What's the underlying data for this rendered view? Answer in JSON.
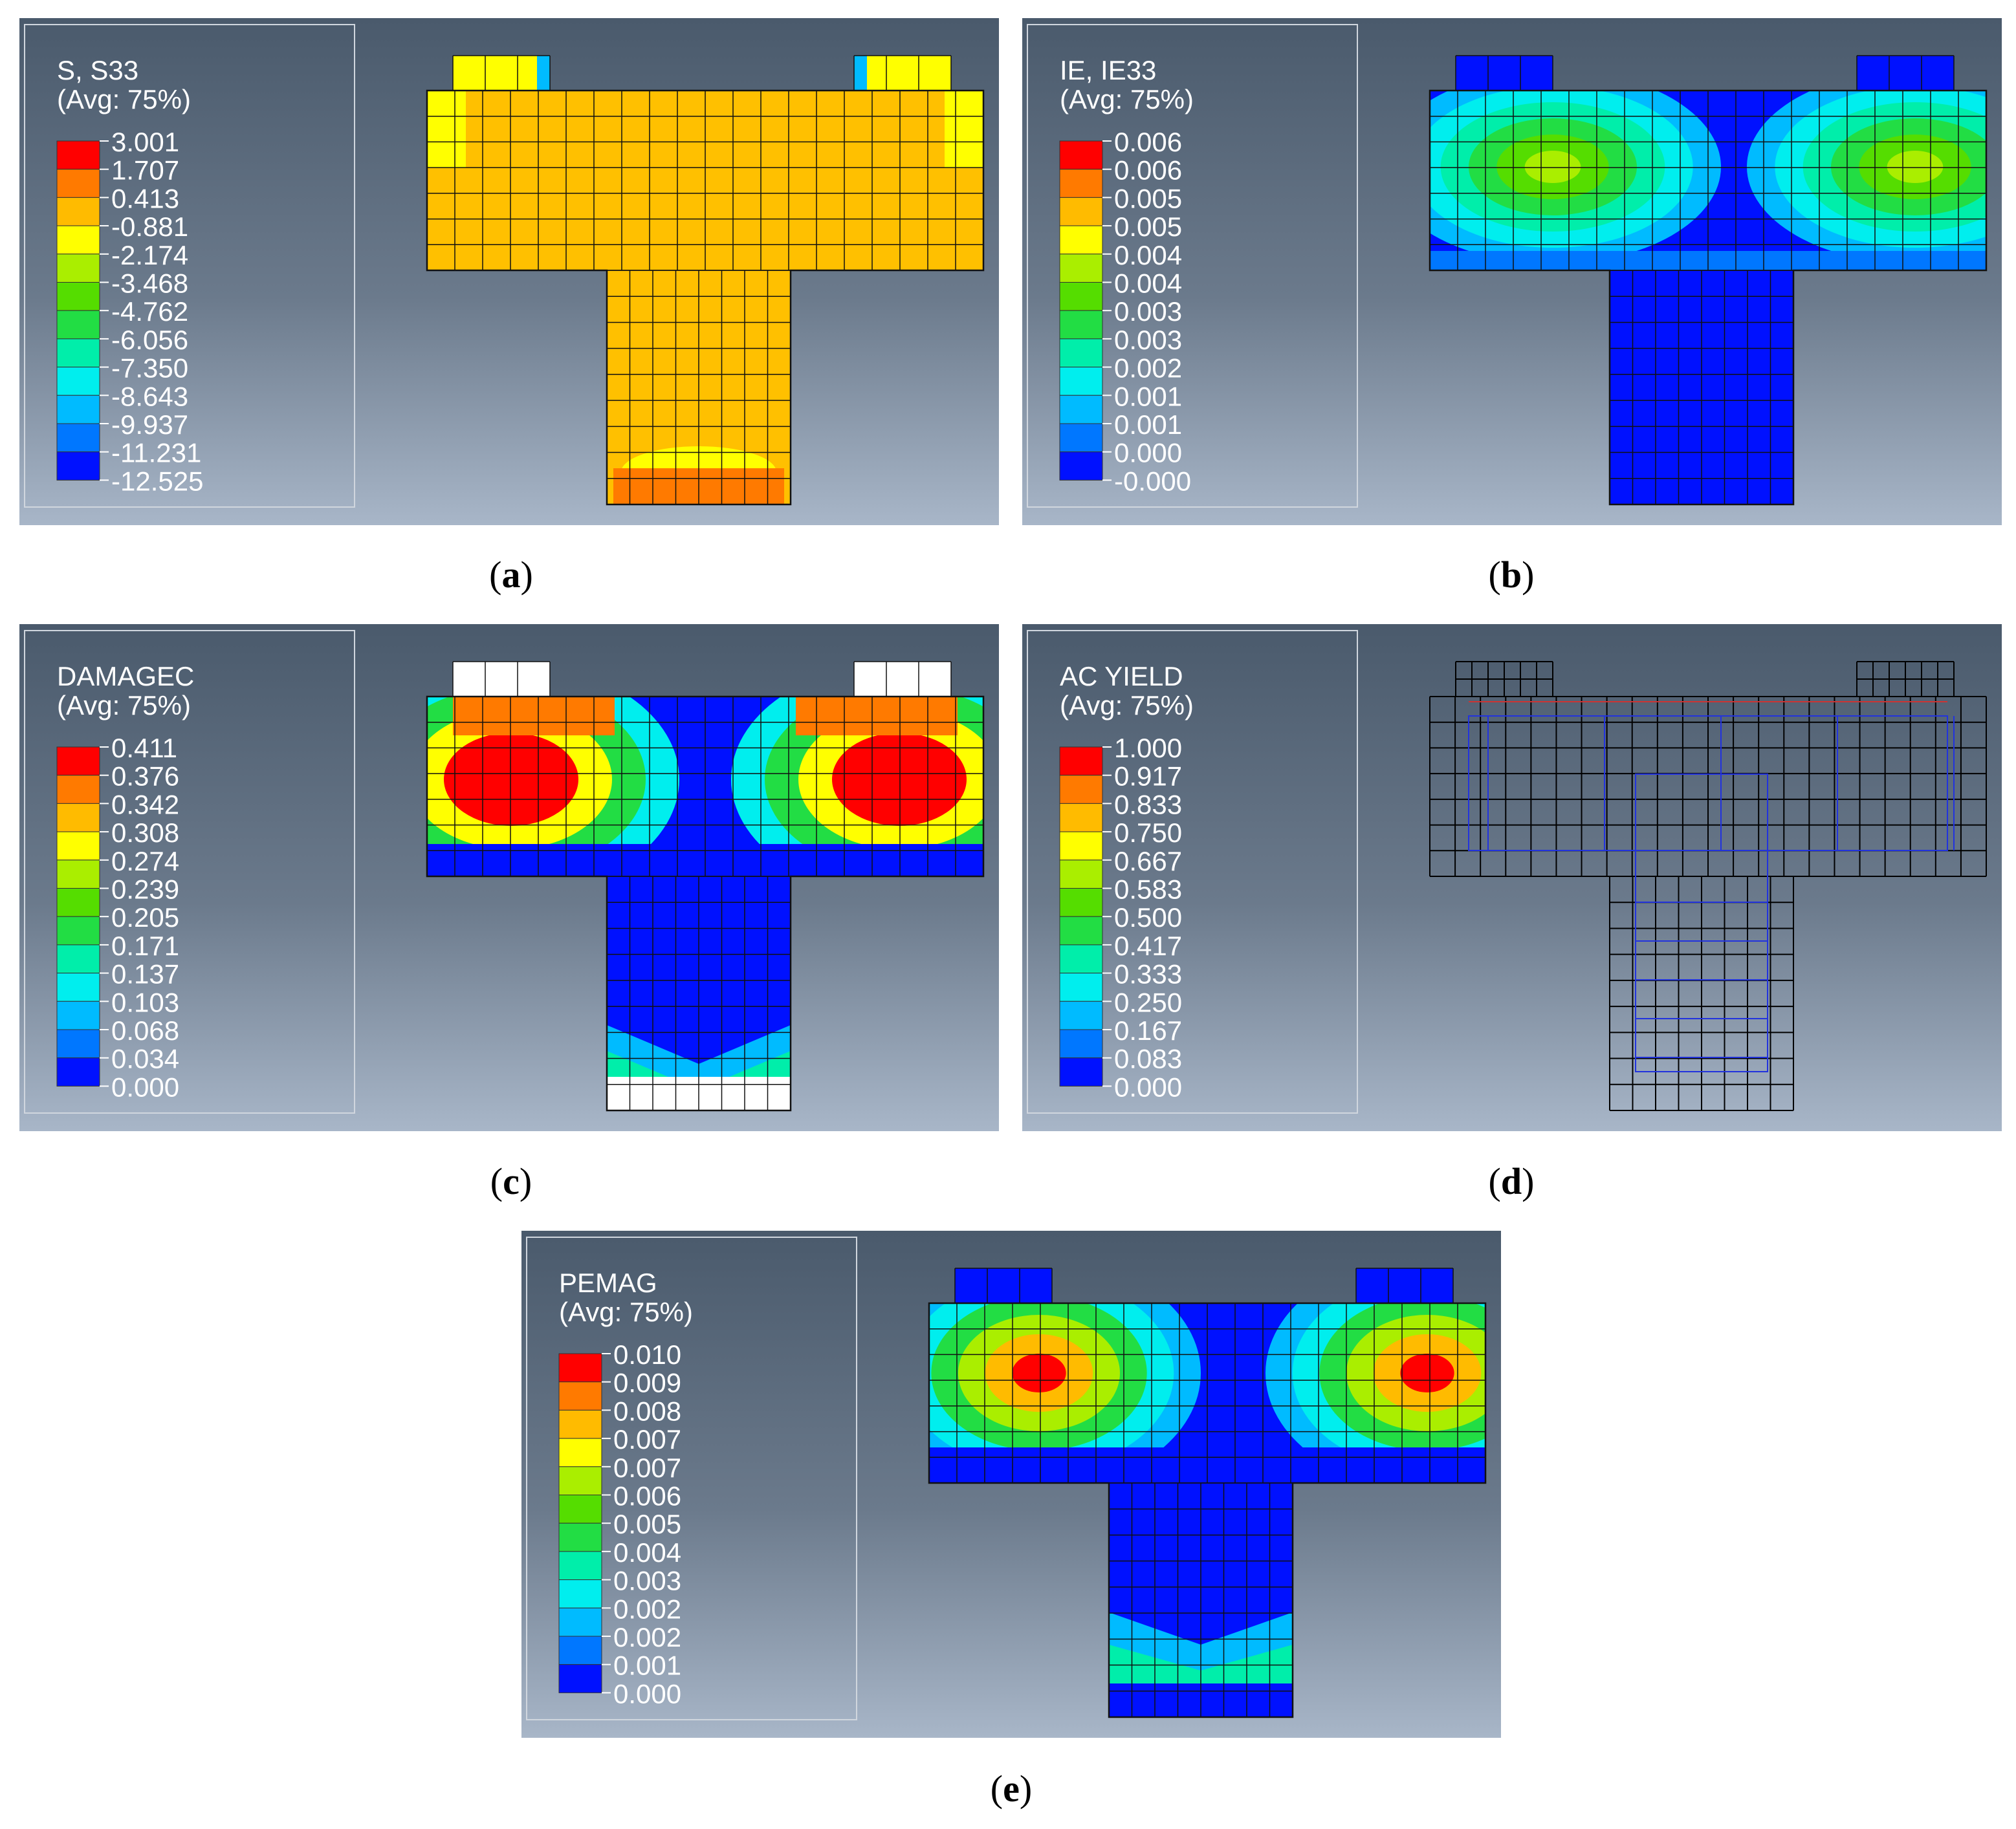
{
  "panels": [
    {
      "id": "a",
      "caption_letter": "a",
      "mode": "ssa",
      "legend": {
        "title": "S, S33",
        "subtitle": "(Avg: 75%)",
        "values": [
          "3.001",
          "1.707",
          "0.413",
          "-0.881",
          "-2.174",
          "-3.468",
          "-4.762",
          "-6.056",
          "-7.350",
          "-8.643",
          "-9.937",
          "-11.231",
          "-12.525"
        ]
      }
    },
    {
      "id": "b",
      "caption_letter": "b",
      "mode": "ie",
      "legend": {
        "title": "IE, IE33",
        "subtitle": "(Avg: 75%)",
        "values": [
          "0.006",
          "0.006",
          "0.005",
          "0.005",
          "0.004",
          "0.004",
          "0.003",
          "0.003",
          "0.002",
          "0.001",
          "0.001",
          "0.000",
          "-0.000"
        ]
      }
    },
    {
      "id": "c",
      "caption_letter": "c",
      "mode": "damage",
      "legend": {
        "title": "DAMAGEC",
        "subtitle": "(Avg: 75%)",
        "values": [
          "0.411",
          "0.376",
          "0.342",
          "0.308",
          "0.274",
          "0.239",
          "0.205",
          "0.171",
          "0.137",
          "0.103",
          "0.068",
          "0.034",
          "0.000"
        ]
      }
    },
    {
      "id": "d",
      "caption_letter": "d",
      "mode": "wire",
      "legend": {
        "title": "AC YIELD",
        "subtitle": "(Avg: 75%)",
        "values": [
          "1.000",
          "0.917",
          "0.833",
          "0.750",
          "0.667",
          "0.583",
          "0.500",
          "0.417",
          "0.333",
          "0.250",
          "0.167",
          "0.083",
          "0.000"
        ]
      }
    },
    {
      "id": "e",
      "caption_letter": "e",
      "mode": "pemag",
      "legend": {
        "title": "PEMAG",
        "subtitle": "(Avg: 75%)",
        "values": [
          "0.010",
          "0.009",
          "0.008",
          "0.007",
          "0.007",
          "0.006",
          "0.005",
          "0.004",
          "0.003",
          "0.002",
          "0.002",
          "0.001",
          "0.000"
        ]
      }
    }
  ],
  "colors": {
    "scale": [
      "#ff0000",
      "#ff7a00",
      "#ffbb00",
      "#ffff00",
      "#aaee00",
      "#55dd00",
      "#22dd44",
      "#00eeaa",
      "#00eeee",
      "#00bbff",
      "#0077ff",
      "#0011ff"
    ],
    "background_top": "#4a5a6c",
    "background_bottom": "#a8b6c8",
    "yellow_orange": "#ffc000",
    "mesh_line": "#111111",
    "wire_line": "#000000",
    "rebar_line": "#2233dd",
    "legend_border": "#d0d6de",
    "legend_text": "#ffffff"
  }
}
